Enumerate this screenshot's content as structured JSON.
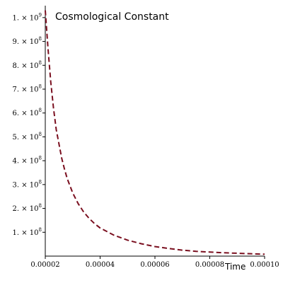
{
  "chart_data": {
    "type": "line",
    "title": "Cosmological Constant",
    "xlabel": "Time",
    "ylabel": "",
    "xlim": [
      2e-05,
      0.0001
    ],
    "ylim": [
      0,
      1050000000
    ],
    "grid": false,
    "x_ticks": [
      {
        "value": 2e-05,
        "label": "0.00002"
      },
      {
        "value": 4e-05,
        "label": "0.00004"
      },
      {
        "value": 6e-05,
        "label": "0.00006"
      },
      {
        "value": 8e-05,
        "label": "0.00008"
      },
      {
        "value": 0.0001,
        "label": "0.00010"
      }
    ],
    "y_ticks": [
      {
        "value": 100000000,
        "mantissa": "1.",
        "exp": "8"
      },
      {
        "value": 200000000,
        "mantissa": "2.",
        "exp": "8"
      },
      {
        "value": 300000000,
        "mantissa": "3.",
        "exp": "8"
      },
      {
        "value": 400000000,
        "mantissa": "4.",
        "exp": "8"
      },
      {
        "value": 500000000,
        "mantissa": "5.",
        "exp": "8"
      },
      {
        "value": 600000000,
        "mantissa": "6.",
        "exp": "8"
      },
      {
        "value": 700000000,
        "mantissa": "7.",
        "exp": "8"
      },
      {
        "value": 800000000,
        "mantissa": "8.",
        "exp": "8"
      },
      {
        "value": 900000000,
        "mantissa": "9.",
        "exp": "8"
      },
      {
        "value": 1000000000,
        "mantissa": "1.",
        "exp": "9"
      }
    ],
    "series": [
      {
        "color": "#7a0f1f",
        "style": "dashed",
        "x": [
          2e-05,
          2.1e-05,
          2.2e-05,
          2.3e-05,
          2.4e-05,
          2.5e-05,
          2.6e-05,
          2.7e-05,
          2.8e-05,
          3e-05,
          3.2e-05,
          3.4e-05,
          3.6e-05,
          3.8e-05,
          4e-05,
          4.5e-05,
          5e-05,
          5.5e-05,
          6e-05,
          6.5e-05,
          7e-05,
          7.5e-05,
          8e-05,
          8.5e-05,
          9e-05,
          9.5e-05,
          0.0001
        ],
        "y": [
          1030000000,
          870000000,
          730000000,
          620000000,
          530000000,
          470000000,
          410000000,
          365000000,
          325000000,
          265000000,
          220000000,
          185000000,
          158000000,
          136000000,
          118000000,
          88000000,
          67000000,
          52000000,
          40000000,
          32000000,
          25000000,
          20000000,
          17000000,
          14000000,
          12000000,
          10000000,
          8000000
        ]
      }
    ]
  }
}
